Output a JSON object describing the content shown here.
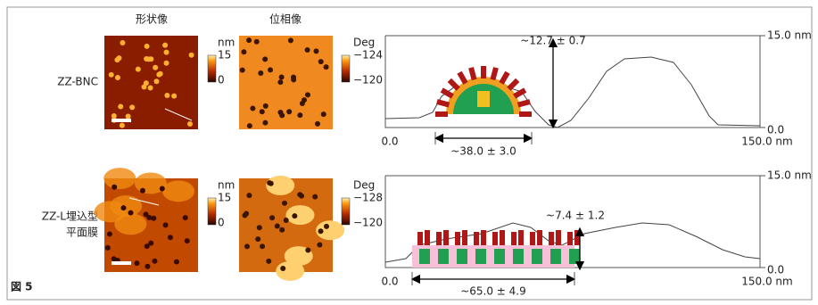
{
  "column_headers": [
    "形状像",
    "位相像"
  ],
  "rows": [
    {
      "label": [
        "ZZ-BNC"
      ],
      "height_scale": {
        "unit": "nm",
        "max": "15",
        "min": "0"
      },
      "phase_scale": {
        "unit": "Deg",
        "max": "−124",
        "min": "−120"
      },
      "profile": {
        "y_max": "15.0 nm",
        "y_min": "0.0",
        "x_min": "0.0",
        "x_max": "150.0 nm",
        "height": "~12.7 ± 0.7",
        "width": "~38.0 ± 3.0"
      }
    },
    {
      "label": [
        "ZZ-L埋込型",
        "平面膜"
      ],
      "height_scale": {
        "unit": "nm",
        "max": "15",
        "min": "0"
      },
      "phase_scale": {
        "unit": "Deg",
        "max": "−128",
        "min": "−120"
      },
      "profile": {
        "y_max": "15.0 nm",
        "y_min": "0.0",
        "x_min": "0.0",
        "x_max": "150.0 nm",
        "height": "~7.4 ± 1.2",
        "width": "~65.0 ± 4.9"
      }
    }
  ],
  "figure_label": "図 5"
}
